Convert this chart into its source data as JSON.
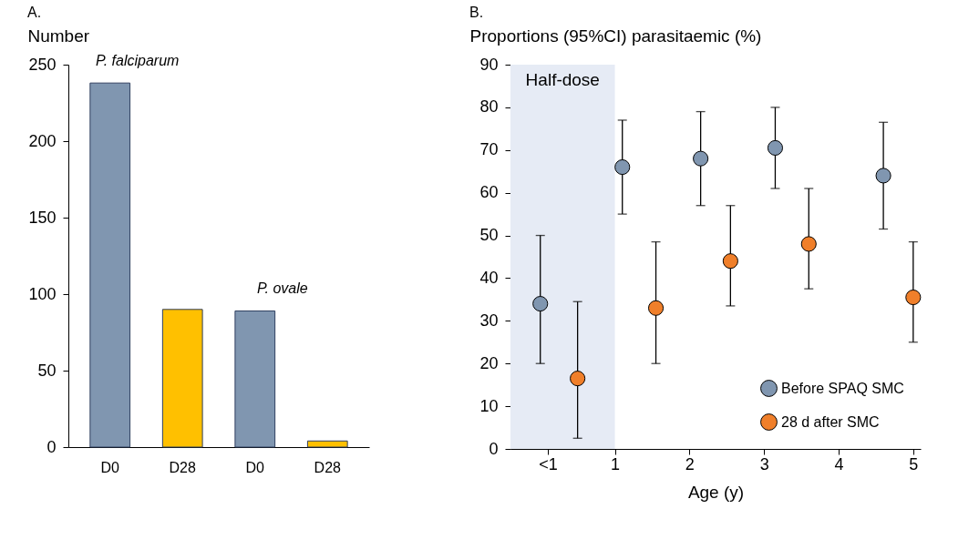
{
  "chart_data": [
    {
      "type": "bar",
      "title": "A.",
      "ylabel": "Number",
      "categories": [
        "D0",
        "D28",
        "D0",
        "D28"
      ],
      "values": [
        238,
        90,
        89,
        4
      ],
      "colors": [
        "#8096b0",
        "#ffc000",
        "#8096b0",
        "#ffc000"
      ],
      "ylim": [
        0,
        250
      ],
      "yticks": [
        0,
        50,
        100,
        150,
        200,
        250
      ],
      "annotations": [
        "P. falciparum",
        "P. ovale"
      ]
    },
    {
      "type": "scatter",
      "title": "B.",
      "xlabel": "Age (y)",
      "ylabel": "Proportions (95%CI) parasitaemic (%)",
      "xlim": [
        -0.4,
        5.1
      ],
      "xticks": [
        {
          "value": 0.1,
          "label": "<1"
        },
        1,
        2,
        3,
        4,
        5
      ],
      "ylim": [
        0,
        90
      ],
      "yticks": [
        0,
        10,
        20,
        30,
        40,
        50,
        60,
        70,
        80,
        90
      ],
      "marker": "circle",
      "legend": "bottom right",
      "bands": [
        {
          "axis": "x",
          "from": -0.4,
          "to": 1,
          "label": "Half-dose",
          "color": "#e6ebf5"
        }
      ],
      "series": [
        {
          "name": "Before SPAQ SMC",
          "color": "#8096b0",
          "x": [
            0,
            1.1,
            2.15,
            3.15,
            4.6
          ],
          "values": [
            34,
            66,
            68,
            70.5,
            64
          ],
          "errors": [
            [
              20,
              50
            ],
            [
              55,
              77
            ],
            [
              57,
              79
            ],
            [
              61,
              80
            ],
            [
              51.5,
              76.5
            ]
          ]
        },
        {
          "name": "28 d  after SMC",
          "color": "#f07f2a",
          "x": [
            0.5,
            1.55,
            2.55,
            3.6,
            5
          ],
          "values": [
            16.5,
            33,
            44,
            48,
            35.5
          ],
          "errors": [
            [
              2.5,
              34.5
            ],
            [
              20,
              48.5
            ],
            [
              33.5,
              57
            ],
            [
              37.5,
              61
            ],
            [
              25,
              48.5
            ]
          ]
        }
      ]
    }
  ]
}
